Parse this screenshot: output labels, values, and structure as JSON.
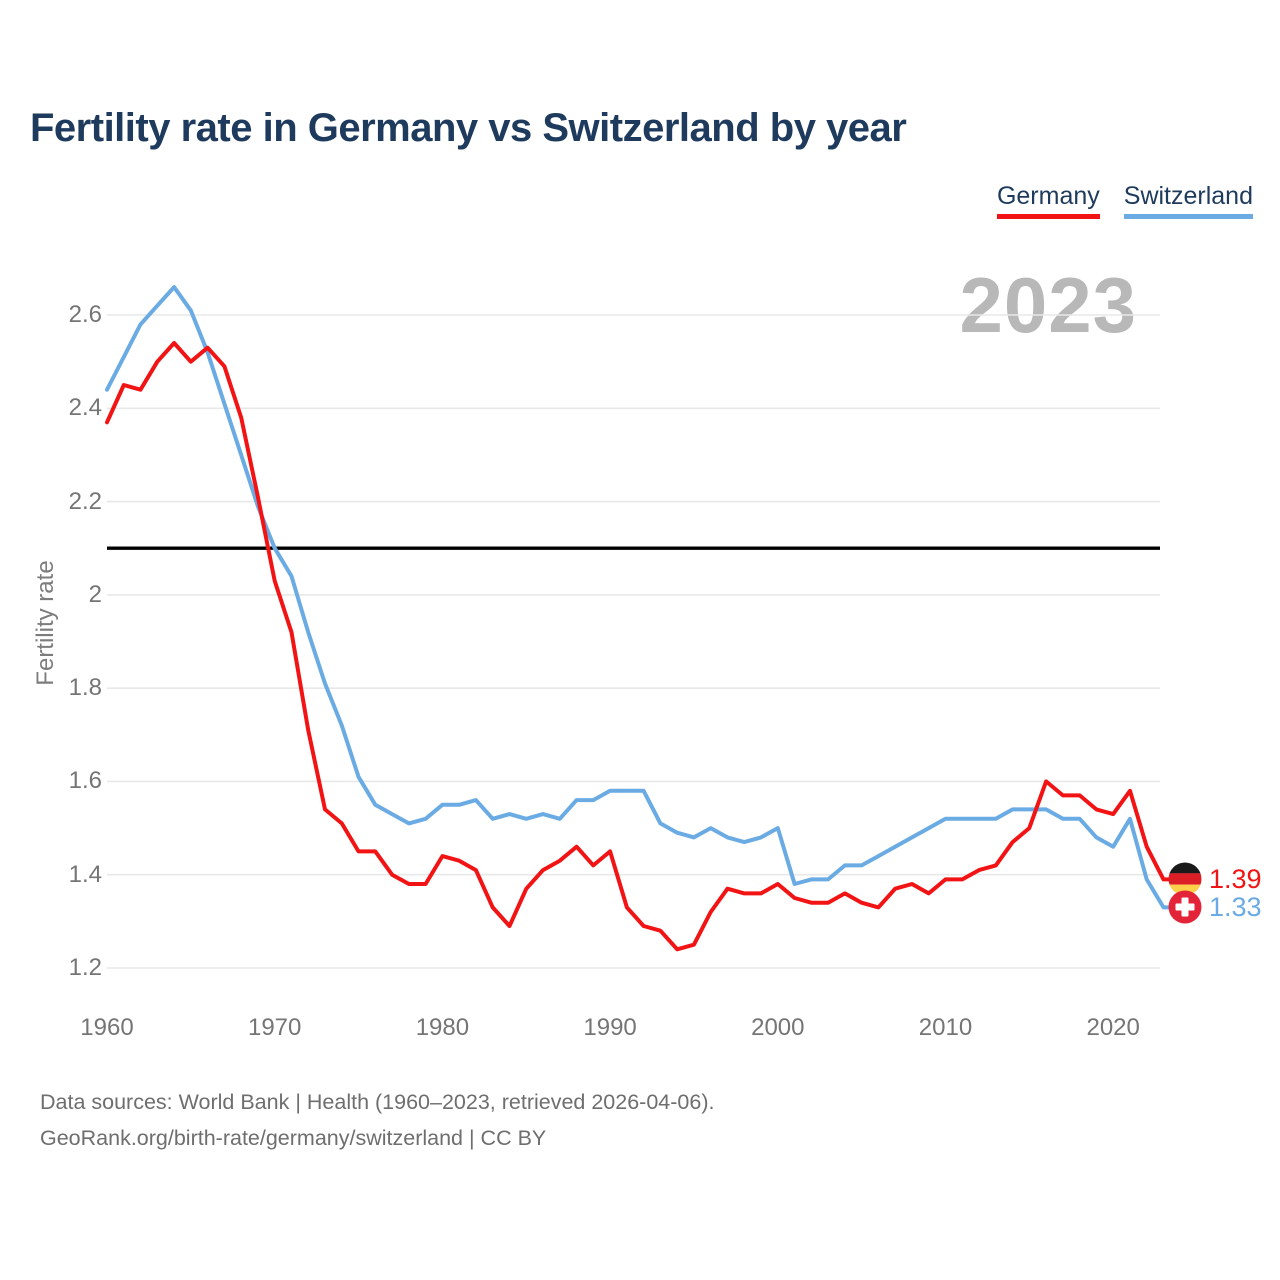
{
  "chart_data": {
    "type": "line",
    "title": "Fertility rate in Germany vs Switzerland by year",
    "xlabel": "",
    "ylabel": "Fertility rate",
    "x_range": [
      1960,
      2023
    ],
    "x_ticks": [
      1960,
      1970,
      1980,
      1990,
      2000,
      2010,
      2020
    ],
    "y_ticks": [
      {
        "label": "1.2",
        "value": 1.2
      },
      {
        "label": "1.4",
        "value": 1.4
      },
      {
        "label": "1.6",
        "value": 1.6
      },
      {
        "label": "1.8",
        "value": 1.8
      },
      {
        "label": "2",
        "value": 2.0
      },
      {
        "label": "2.2",
        "value": 2.2
      },
      {
        "label": "2.4",
        "value": 2.4
      },
      {
        "label": "2.6",
        "value": 2.6
      }
    ],
    "ylim": [
      1.2,
      2.7
    ],
    "grid": true,
    "reference_line_value": 2.1,
    "year_annotation": "2023",
    "legend_position": "top-right",
    "series": [
      {
        "name": "Germany",
        "color": "#f21414",
        "flag": "germany-flag",
        "start_year": 1960,
        "end_label": "1.39",
        "values": [
          2.37,
          2.45,
          2.44,
          2.5,
          2.54,
          2.5,
          2.53,
          2.49,
          2.38,
          2.21,
          2.03,
          1.92,
          1.71,
          1.54,
          1.51,
          1.45,
          1.45,
          1.4,
          1.38,
          1.38,
          1.44,
          1.43,
          1.41,
          1.33,
          1.29,
          1.37,
          1.41,
          1.43,
          1.46,
          1.42,
          1.45,
          1.33,
          1.29,
          1.28,
          1.24,
          1.25,
          1.32,
          1.37,
          1.36,
          1.36,
          1.38,
          1.35,
          1.34,
          1.34,
          1.36,
          1.34,
          1.33,
          1.37,
          1.38,
          1.36,
          1.39,
          1.39,
          1.41,
          1.42,
          1.47,
          1.5,
          1.6,
          1.57,
          1.57,
          1.54,
          1.53,
          1.58,
          1.46,
          1.39
        ]
      },
      {
        "name": "Switzerland",
        "color": "#6aabe4",
        "flag": "switzerland-flag",
        "start_year": 1960,
        "end_label": "1.33",
        "values": [
          2.44,
          2.51,
          2.58,
          2.62,
          2.66,
          2.61,
          2.52,
          2.41,
          2.3,
          2.19,
          2.1,
          2.04,
          1.92,
          1.81,
          1.72,
          1.61,
          1.55,
          1.53,
          1.51,
          1.52,
          1.55,
          1.55,
          1.56,
          1.52,
          1.53,
          1.52,
          1.53,
          1.52,
          1.56,
          1.56,
          1.58,
          1.58,
          1.58,
          1.51,
          1.49,
          1.48,
          1.5,
          1.48,
          1.47,
          1.48,
          1.5,
          1.38,
          1.39,
          1.39,
          1.42,
          1.42,
          1.44,
          1.46,
          1.48,
          1.5,
          1.52,
          1.52,
          1.52,
          1.52,
          1.54,
          1.54,
          1.54,
          1.52,
          1.52,
          1.48,
          1.46,
          1.52,
          1.39,
          1.33
        ]
      }
    ]
  },
  "legend": {
    "items": [
      {
        "label": "Germany",
        "color": "#f21414"
      },
      {
        "label": "Switzerland",
        "color": "#6aabe4"
      }
    ]
  },
  "footer": {
    "line1": "Data sources: World Bank | Health (1960–2023, retrieved 2026-04-06).",
    "line2": "GeoRank.org/birth-rate/germany/switzerland | CC BY"
  }
}
